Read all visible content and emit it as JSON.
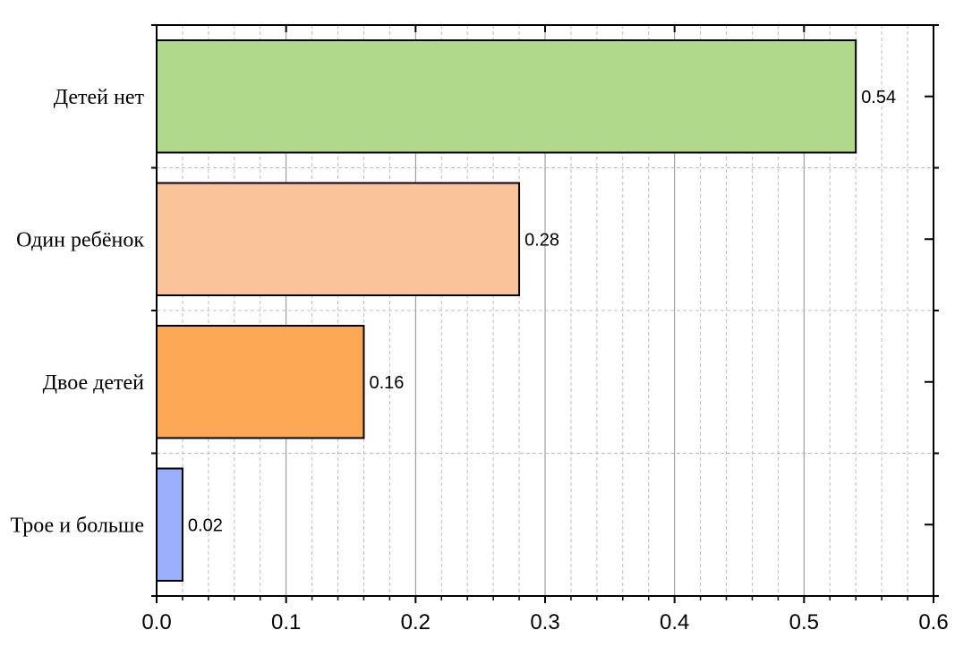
{
  "chart_data": {
    "type": "bar",
    "orientation": "horizontal",
    "categories": [
      "Детей нет",
      "Один ребёнок",
      "Двое детей",
      "Трое и больше"
    ],
    "values": [
      0.54,
      0.28,
      0.16,
      0.02
    ],
    "data_labels": [
      "0.54",
      "0.28",
      "0.16",
      "0.02"
    ],
    "bar_colors": [
      "#b0d98b",
      "#fbc39a",
      "#fca854",
      "#9aaffc"
    ],
    "xlim": [
      0,
      0.6
    ],
    "x_ticks": [
      0,
      0.1,
      0.2,
      0.3,
      0.4,
      0.5,
      0.6
    ],
    "x_tick_labels": [
      "0.0",
      "0.1",
      "0.2",
      "0.3",
      "0.4",
      "0.5",
      "0.6"
    ],
    "grid": true,
    "legend": false,
    "title": "",
    "xlabel": "",
    "ylabel": ""
  }
}
